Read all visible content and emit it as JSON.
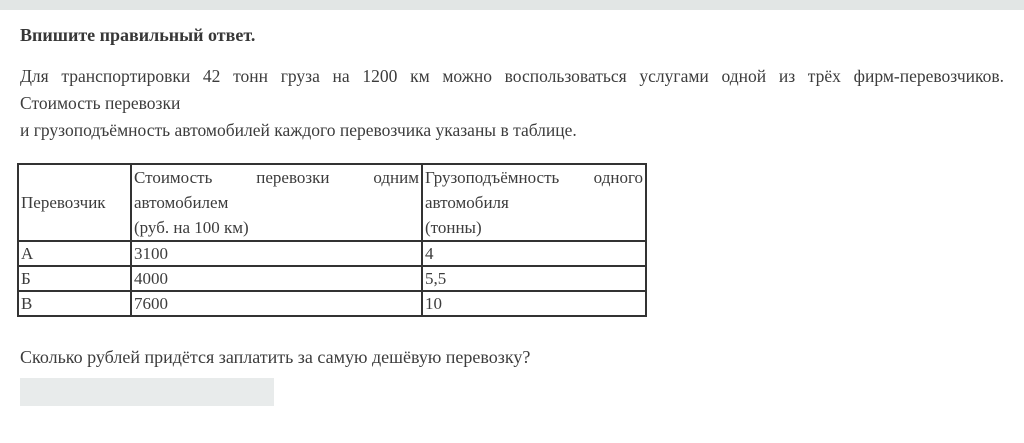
{
  "page": {
    "title": "Впишите правильный ответ.",
    "paragraph": {
      "line1": "Для транспортировки 42 тонн груза на 1200 км можно воспользоваться услугами одной из трёх фирм-перевозчиков.",
      "line2": "Стоимость перевозки",
      "line3": "и грузоподъёмность автомобилей каждого перевозчика указаны в таблице."
    },
    "question": "Сколько рублей придётся заплатить за самую дешёвую перевозку?",
    "answer_input": {
      "value": ""
    }
  },
  "table": {
    "col1_header": "Перевозчик",
    "col2_header_lines": [
      "Стоимость перевозки одним",
      "автомобилем",
      "(руб. на 100 км)"
    ],
    "col3_header_lines": [
      "Грузоподъёмность одного",
      "автомобиля",
      "(тонны)"
    ],
    "rows": [
      {
        "carrier": "А",
        "cost": "3100",
        "capacity": "4"
      },
      {
        "carrier": "Б",
        "cost": "4000",
        "capacity": "5,5"
      },
      {
        "carrier": "В",
        "cost": "7600",
        "capacity": "10"
      }
    ]
  },
  "colors": {
    "topbar_bg": "#e2e6e5",
    "input_bg": "#e8ebeb",
    "text": "#3c3c3c",
    "table_border": "#333333"
  }
}
